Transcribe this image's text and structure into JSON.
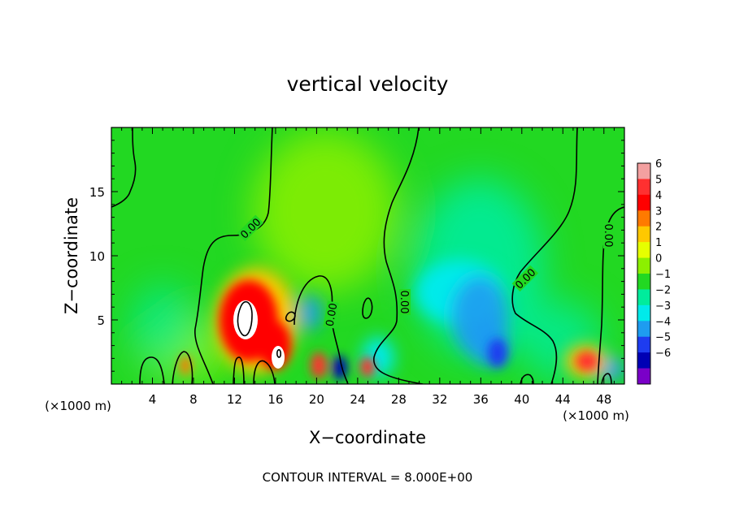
{
  "chart_data": {
    "type": "heatmap",
    "title": "vertical velocity",
    "xlabel": "X−coordinate",
    "ylabel": "Z−coordinate",
    "x_unit_left": "(×1000 m)",
    "x_unit_right": "(×1000 m)",
    "footer": "CONTOUR INTERVAL = 8.000E+00",
    "xlim": [
      0,
      50
    ],
    "ylim": [
      0,
      20
    ],
    "x_ticks": [
      4,
      8,
      12,
      16,
      20,
      24,
      28,
      32,
      36,
      40,
      44,
      48
    ],
    "y_ticks": [
      5,
      10,
      15
    ],
    "contour_labels": [
      "0.00",
      "0.00",
      "0.00",
      "0.00",
      "0.00"
    ],
    "colorbar": {
      "levels": [
        "6",
        "5",
        "4",
        "3",
        "2",
        "1",
        "0",
        "−1",
        "−2",
        "−3",
        "−4",
        "−5",
        "−6"
      ],
      "colors": [
        "#f3a0a0",
        "#ff3030",
        "#ff0000",
        "#ff7a00",
        "#ffc800",
        "#e6ff00",
        "#8cf000",
        "#22d822",
        "#00ec9c",
        "#00eaea",
        "#1e9cf0",
        "#1e3cf0",
        "#0000b4",
        "#7a00c8"
      ]
    },
    "features": [
      {
        "label": "updraft core",
        "x": 13.3,
        "z": 5.0,
        "w": 8
      },
      {
        "label": "updraft",
        "x": 16.0,
        "z": 2.5,
        "w": 7
      },
      {
        "label": "updraft",
        "x": 20.5,
        "z": 1.5,
        "w": 4
      },
      {
        "label": "updraft",
        "x": 25.0,
        "z": 1.3,
        "w": 4
      },
      {
        "label": "updraft",
        "x": 7.5,
        "z": 1.5,
        "w": 3
      },
      {
        "label": "updraft",
        "x": 46.5,
        "z": 1.8,
        "w": 4
      },
      {
        "label": "downdraft",
        "x": 22.2,
        "z": 1.2,
        "w": -5
      },
      {
        "label": "downdraft",
        "x": 19.5,
        "z": 5.0,
        "w": -3
      },
      {
        "label": "downdraft",
        "x": 35.0,
        "z": 5.0,
        "w": -3
      },
      {
        "label": "downdraft",
        "x": 37.5,
        "z": 2.0,
        "w": -4
      },
      {
        "label": "downdraft",
        "x": 48.5,
        "z": 1.2,
        "w": -3
      }
    ]
  }
}
